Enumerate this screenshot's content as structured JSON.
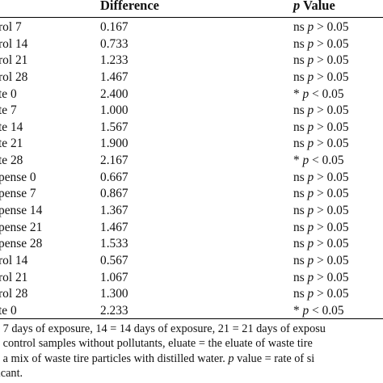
{
  "table": {
    "headers": {
      "difference": "Difference",
      "p_italic": "p",
      "p_rest": " Value"
    },
    "rows": [
      {
        "label": "rol 7",
        "difference": "0.167",
        "p": "ns p > 0.05"
      },
      {
        "label": "rol 14",
        "difference": "0.733",
        "p": "ns p > 0.05"
      },
      {
        "label": "rol 21",
        "difference": "1.233",
        "p": "ns p > 0.05"
      },
      {
        "label": "rol 28",
        "difference": "1.467",
        "p": "ns p > 0.05"
      },
      {
        "label": "te 0",
        "difference": "2.400",
        "p": "* p < 0.05"
      },
      {
        "label": "te 7",
        "difference": "1.000",
        "p": "ns p > 0.05"
      },
      {
        "label": "te 14",
        "difference": "1.567",
        "p": "ns p > 0.05"
      },
      {
        "label": "te 21",
        "difference": "1.900",
        "p": "ns p > 0.05"
      },
      {
        "label": "te 28",
        "difference": "2.167",
        "p": "* p < 0.05"
      },
      {
        "label": "pense 0",
        "difference": "0.667",
        "p": "ns p > 0.05"
      },
      {
        "label": "pense 7",
        "difference": "0.867",
        "p": "ns p > 0.05"
      },
      {
        "label": "pense 14",
        "difference": "1.367",
        "p": "ns p > 0.05"
      },
      {
        "label": "pense 21",
        "difference": "1.467",
        "p": "ns p > 0.05"
      },
      {
        "label": "pense 28",
        "difference": "1.533",
        "p": "ns p > 0.05"
      },
      {
        "label": "rol 14",
        "difference": "0.567",
        "p": "ns p > 0.05"
      },
      {
        "label": "rol 21",
        "difference": "1.067",
        "p": "ns p > 0.05"
      },
      {
        "label": "rol 28",
        "difference": "1.300",
        "p": "ns p > 0.05"
      },
      {
        "label": "te 0",
        "difference": "2.233",
        "p": "* p < 0.05"
      }
    ]
  },
  "notes": [
    "= 7 days of exposure, 14 = 14 days of exposure, 21 = 21 days of exposu",
    "= control samples without pollutants, eluate = the eluate of waste tire",
    "= a mix of waste tire particles with distilled water. p value = rate of si",
    "ficant."
  ]
}
